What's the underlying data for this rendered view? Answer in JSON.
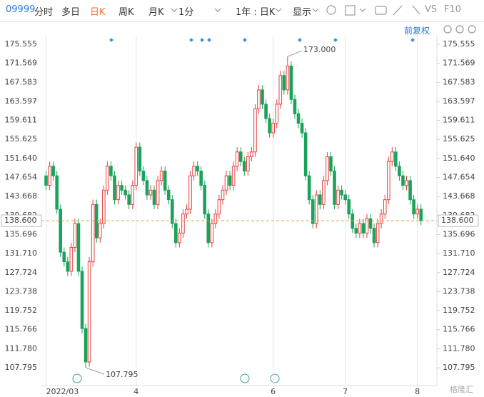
{
  "toolbar": {
    "symbol": "09999",
    "items": [
      "分时",
      "多日",
      "日K",
      "周K",
      "月K",
      "1分",
      "1年 : 日K",
      "显示"
    ],
    "vs": "VS",
    "f10": "F10",
    "adjust": "前复权"
  },
  "watermark": "格隆汇",
  "chart_data": {
    "type": "candlestick",
    "categories": [
      "2022/03",
      null,
      null,
      null,
      null,
      null,
      null,
      null,
      null,
      null,
      null,
      null,
      null,
      null,
      null,
      null,
      null,
      null,
      null,
      null,
      null,
      null,
      null,
      null,
      null,
      "4",
      null,
      null,
      null,
      null,
      null,
      null,
      null,
      null,
      null,
      null,
      null,
      null,
      null,
      null,
      null,
      null,
      null,
      null,
      null,
      null,
      null,
      null,
      null,
      null,
      null,
      null,
      null,
      null,
      null,
      null,
      null,
      null,
      null,
      null,
      null,
      null,
      null,
      "6",
      null,
      null,
      null,
      null,
      null,
      null,
      null,
      null,
      null,
      null,
      null,
      null,
      null,
      null,
      null,
      null,
      null,
      null,
      null,
      "7",
      null,
      null,
      null,
      null,
      null,
      null,
      null,
      null,
      null,
      null,
      null,
      null,
      null,
      null,
      null,
      null,
      null,
      null,
      null,
      "8",
      null
    ],
    "series": [
      {
        "up_color": "#e8403f",
        "down_color": "#1aa35a",
        "open": [
          148,
          146,
          150,
          148,
          141,
          132,
          130,
          128,
          133,
          138,
          128,
          116,
          109,
          130,
          142,
          135,
          138,
          145,
          150,
          148,
          143,
          146,
          145,
          144,
          142,
          146,
          154,
          149,
          147,
          144,
          145,
          142,
          147,
          149,
          145,
          143,
          138,
          134,
          136,
          140,
          141,
          148,
          150,
          149,
          146,
          140,
          134,
          138,
          140,
          143,
          145,
          148,
          146,
          150,
          153,
          151,
          149,
          152,
          153,
          162,
          166,
          163,
          160,
          157,
          159,
          163,
          169,
          166,
          171,
          164,
          161,
          159,
          157,
          148,
          143,
          138,
          144,
          142,
          147,
          152,
          149,
          142,
          145,
          144,
          143,
          140,
          137,
          136,
          138,
          136,
          139,
          137,
          134,
          138,
          140,
          143,
          151,
          153,
          150,
          148,
          146,
          147,
          143,
          140,
          141
        ],
        "high": [
          149,
          151,
          151,
          149,
          142,
          133,
          131,
          134,
          139,
          139,
          129,
          117,
          131,
          143,
          143,
          139,
          146,
          151,
          151,
          149,
          147,
          147,
          146,
          145,
          147,
          155,
          155,
          150,
          148,
          146,
          146,
          148,
          150,
          150,
          146,
          144,
          139,
          137,
          141,
          142,
          149,
          151,
          151,
          150,
          147,
          141,
          139,
          141,
          144,
          146,
          149,
          149,
          151,
          154,
          154,
          152,
          153,
          154,
          163,
          167,
          167,
          164,
          161,
          160,
          164,
          170,
          170,
          173,
          172,
          165,
          162,
          160,
          158,
          149,
          144,
          145,
          145,
          148,
          153,
          153,
          150,
          146,
          146,
          145,
          144,
          141,
          138,
          139,
          139,
          140,
          140,
          138,
          139,
          141,
          144,
          152,
          154,
          154,
          151,
          149,
          148,
          148,
          144,
          142,
          142
        ],
        "low": [
          145,
          145,
          147,
          140,
          131,
          129,
          127,
          127,
          132,
          127,
          115,
          107.795,
          108,
          129,
          134,
          134,
          137,
          144,
          147,
          142,
          142,
          144,
          143,
          141,
          141,
          145,
          148,
          146,
          143,
          143,
          141,
          141,
          146,
          144,
          142,
          137,
          133,
          133,
          135,
          139,
          140,
          147,
          148,
          145,
          139,
          133,
          133,
          137,
          139,
          142,
          144,
          145,
          145,
          149,
          150,
          148,
          148,
          151,
          152,
          161,
          162,
          159,
          156,
          156,
          158,
          162,
          165,
          165,
          163,
          160,
          158,
          156,
          147,
          142,
          137,
          137,
          141,
          141,
          146,
          148,
          141,
          141,
          143,
          142,
          139,
          136,
          135,
          135,
          135,
          135,
          136,
          133,
          133,
          137,
          139,
          142,
          150,
          149,
          147,
          145,
          145,
          142,
          139,
          139,
          137.6
        ],
        "close": [
          146,
          150,
          148,
          141,
          132,
          130,
          128,
          133,
          138,
          128,
          116,
          109,
          130,
          142,
          135,
          138,
          145,
          150,
          148,
          143,
          146,
          145,
          144,
          142,
          146,
          154,
          149,
          147,
          144,
          145,
          142,
          147,
          149,
          145,
          143,
          138,
          134,
          136,
          140,
          141,
          148,
          150,
          149,
          146,
          140,
          134,
          138,
          140,
          143,
          145,
          148,
          146,
          150,
          153,
          151,
          149,
          152,
          153,
          162,
          166,
          163,
          160,
          157,
          159,
          163,
          169,
          166,
          171,
          164,
          161,
          159,
          157,
          148,
          143,
          138,
          144,
          142,
          147,
          152,
          149,
          142,
          145,
          144,
          143,
          140,
          137,
          136,
          138,
          136,
          139,
          137,
          134,
          138,
          140,
          143,
          151,
          153,
          150,
          148,
          146,
          147,
          143,
          140,
          141,
          138.6
        ]
      }
    ],
    "ylim": [
      104.06,
      177.35
    ],
    "yticks": [
      175.555,
      171.569,
      167.583,
      163.597,
      159.611,
      155.625,
      {
        "value": 151.64,
        "label": "151.640"
      },
      147.654,
      143.668,
      139.682,
      135.696,
      131.71,
      127.724,
      123.738,
      119.752,
      115.766,
      111.78,
      107.795
    ],
    "ytick_labels_fixed": [
      null,
      null,
      null,
      null,
      null,
      null,
      null,
      null,
      null,
      null,
      null,
      {
        "value": 131.71,
        "label": "131.710"
      },
      null,
      null,
      null,
      null,
      {
        "value": 111.78,
        "label": "111.780"
      },
      null
    ],
    "last_price": {
      "value": 138.6,
      "label": "138.600",
      "color": "#d9a441"
    },
    "annotations": {
      "high": {
        "value": 173,
        "label": "173.000"
      },
      "low": 107.795
    },
    "grid": false
  }
}
